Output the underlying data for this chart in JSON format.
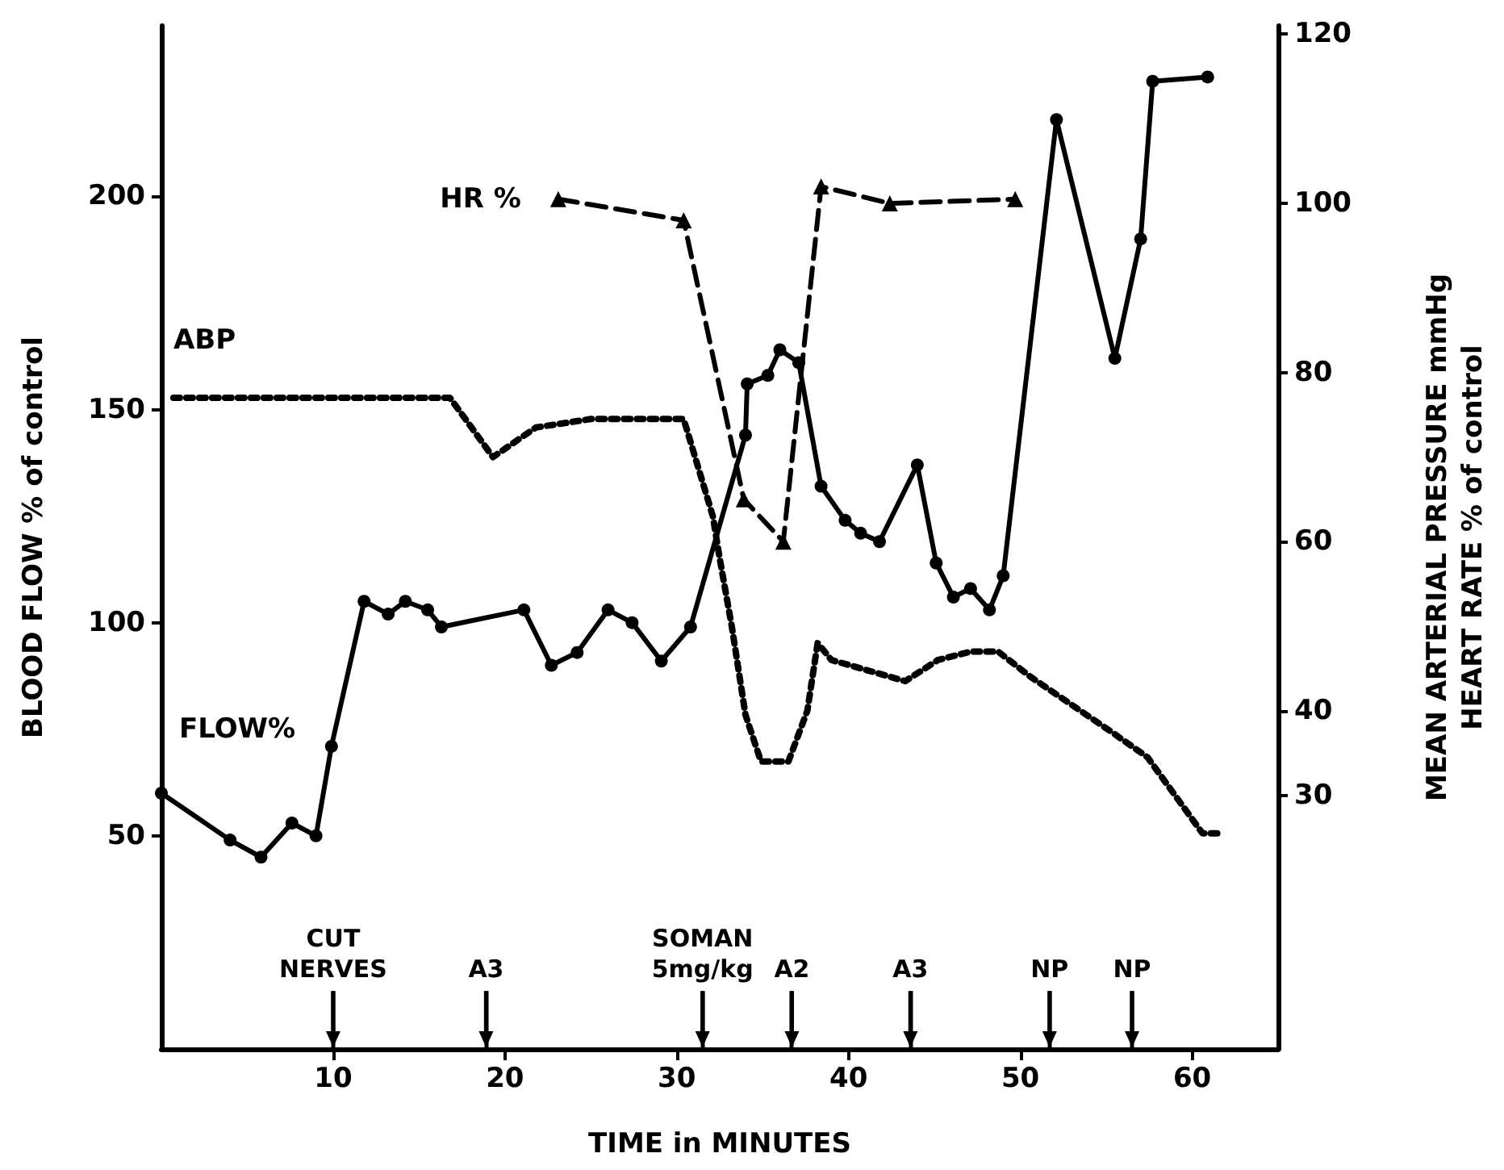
{
  "chart_data": {
    "type": "line",
    "xlabel": "TIME in MINUTES",
    "ylabel": "BLOOD FLOW % of control",
    "y2label": "MEAN ARTERIAL PRESSURE mmHg\nHEART RATE % of control",
    "xlim": [
      0,
      65
    ],
    "xticks": [
      10,
      20,
      30,
      40,
      50,
      60
    ],
    "ylim": [
      0,
      240
    ],
    "yticks": [
      50,
      100,
      150,
      200
    ],
    "y2lim": [
      0,
      121
    ],
    "y2ticks": [
      30,
      40,
      60,
      80,
      100,
      120
    ],
    "series": [
      {
        "name": "FLOW%",
        "color": "#000000",
        "marker": "circle",
        "line_style": "solid",
        "x": [
          0,
          4.0,
          5.8,
          7.6,
          9.0,
          9.9,
          11.8,
          13.2,
          14.2,
          15.5,
          16.3,
          21.1,
          22.7,
          24.2,
          26.0,
          27.4,
          29.1,
          30.8,
          34.0,
          34.1,
          35.3,
          36.0,
          37.1,
          38.4,
          39.8,
          40.7,
          41.8,
          44.0,
          45.1,
          46.1,
          47.1,
          48.2,
          49.0,
          52.1,
          55.5,
          57.0,
          57.7,
          60.9
        ],
        "values": [
          60,
          49,
          45,
          53,
          50,
          71,
          105,
          102,
          105,
          103,
          99,
          103,
          90,
          93,
          103,
          100,
          91,
          99,
          144,
          156,
          158,
          164,
          161,
          132,
          124,
          121,
          119,
          137,
          114,
          106,
          108,
          103,
          111,
          218,
          162,
          190,
          227,
          228
        ]
      },
      {
        "name": "ABP",
        "color": "#000000",
        "marker": "none",
        "line_style": "dotted",
        "axis": "y2",
        "x": [
          0.7,
          16.8,
          19.3,
          21.8,
          25.0,
          30.4,
          32.1,
          32.5,
          33.2,
          34.0,
          34.9,
          36.5,
          37.6,
          38.2,
          39.0,
          43.3,
          45.2,
          47.1,
          48.7,
          50.6,
          55.3,
          57.4,
          60.6,
          61.8
        ],
        "values": [
          77,
          77,
          70,
          73.5,
          74.5,
          74.5,
          63,
          58,
          50,
          39.5,
          34,
          34,
          40,
          48,
          46,
          43.5,
          46,
          47,
          47,
          44,
          37.5,
          34.5,
          25.5,
          25.5
        ]
      },
      {
        "name": "HR %",
        "color": "#000000",
        "marker": "triangle",
        "line_style": "dashed",
        "axis": "y2",
        "x": [
          23.1,
          30.4,
          33.9,
          36.2,
          38.4,
          42.4,
          49.7
        ],
        "values": [
          100.5,
          98,
          65,
          60,
          102,
          100,
          100.5
        ]
      }
    ],
    "ref_lines": [
      {
        "axis": "x",
        "value": 10,
        "label": "CUT\nNERVES"
      },
      {
        "axis": "x",
        "value": 18.9,
        "label": "A3"
      },
      {
        "axis": "x",
        "value": 31.5,
        "label": "SOMAN\n5mg/kg"
      },
      {
        "axis": "x",
        "value": 36.7,
        "label": "A2"
      },
      {
        "axis": "x",
        "value": 43.6,
        "label": "A3"
      },
      {
        "axis": "x",
        "value": 51.7,
        "label": "NP"
      },
      {
        "axis": "x",
        "value": 56.5,
        "label": "NP"
      }
    ]
  }
}
